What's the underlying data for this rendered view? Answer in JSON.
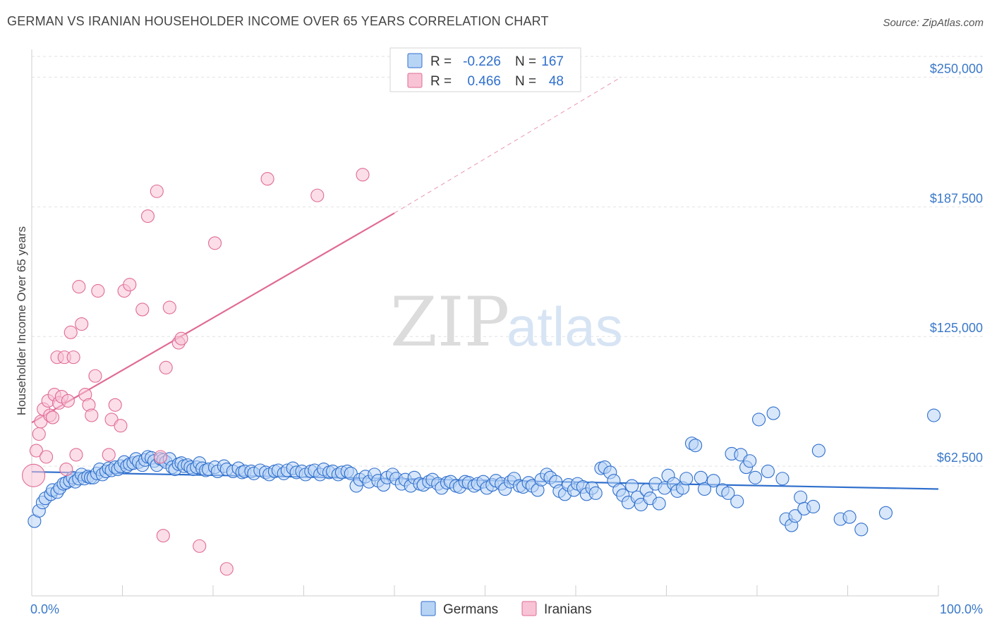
{
  "title": "GERMAN VS IRANIAN HOUSEHOLDER INCOME OVER 65 YEARS CORRELATION CHART",
  "source": "Source: ZipAtlas.com",
  "watermark": {
    "zip": "ZIP",
    "atlas": "atlas"
  },
  "colors": {
    "german": "#2f6fcc",
    "german_fill": "#b8d4f5",
    "iranian": "#e06b95",
    "iranian_fill": "#f8c3d5",
    "tick": "#3a78c9"
  },
  "legend": {
    "german": {
      "r_label": "R =",
      "r": "-0.226",
      "n_label": "N =",
      "n": "167"
    },
    "iranian": {
      "r_label": "R =",
      "r": "0.466",
      "n_label": "N =",
      "n": "48"
    }
  },
  "chart_data": {
    "type": "scatter",
    "title": "GERMAN VS IRANIAN HOUSEHOLDER INCOME OVER 65 YEARS CORRELATION CHART",
    "xlabel": "",
    "ylabel": "Householder Income Over 65 years",
    "xlim": [
      0,
      100
    ],
    "ylim": [
      0,
      260000
    ],
    "x_tick_labels": [
      "0.0%",
      "100.0%"
    ],
    "y_ticks": [
      62500,
      125000,
      187500,
      250000
    ],
    "y_tick_labels": [
      "$62,500",
      "$125,000",
      "$187,500",
      "$250,000"
    ],
    "grid": true,
    "legend_position": "top-center",
    "series": [
      {
        "name": "Germans",
        "color": "#2f6fcc",
        "trend": {
          "x": [
            0,
            100
          ],
          "y": [
            59800,
            51500
          ],
          "style": "solid"
        },
        "points": [
          [
            0.3,
            36000
          ],
          [
            0.8,
            41000
          ],
          [
            1.2,
            45000
          ],
          [
            1.5,
            47000
          ],
          [
            2.1,
            49000
          ],
          [
            2.3,
            51000
          ],
          [
            2.8,
            50000
          ],
          [
            3.1,
            52000
          ],
          [
            3.5,
            54000
          ],
          [
            3.8,
            54500
          ],
          [
            4.2,
            55500
          ],
          [
            4.5,
            57000
          ],
          [
            4.8,
            55000
          ],
          [
            5.2,
            56500
          ],
          [
            5.5,
            58500
          ],
          [
            5.8,
            56500
          ],
          [
            6.2,
            57500
          ],
          [
            6.5,
            57000
          ],
          [
            6.8,
            57000
          ],
          [
            7.2,
            59000
          ],
          [
            7.5,
            61000
          ],
          [
            7.8,
            58500
          ],
          [
            8.2,
            60000
          ],
          [
            8.5,
            61500
          ],
          [
            8.8,
            60500
          ],
          [
            9.2,
            62000
          ],
          [
            9.5,
            61000
          ],
          [
            9.8,
            62500
          ],
          [
            10.2,
            64500
          ],
          [
            10.5,
            62500
          ],
          [
            10.8,
            63500
          ],
          [
            11.2,
            64000
          ],
          [
            11.5,
            66000
          ],
          [
            11.8,
            64500
          ],
          [
            12.2,
            63000
          ],
          [
            12.5,
            65500
          ],
          [
            12.8,
            67000
          ],
          [
            13.2,
            66500
          ],
          [
            13.5,
            65000
          ],
          [
            13.8,
            63000
          ],
          [
            14.2,
            66000
          ],
          [
            14.5,
            65500
          ],
          [
            14.8,
            64500
          ],
          [
            15.2,
            66000
          ],
          [
            15.5,
            62000
          ],
          [
            15.8,
            61000
          ],
          [
            16.2,
            63500
          ],
          [
            16.5,
            64000
          ],
          [
            16.8,
            62500
          ],
          [
            17.2,
            63000
          ],
          [
            17.5,
            62000
          ],
          [
            17.8,
            61000
          ],
          [
            18.2,
            62000
          ],
          [
            18.5,
            64000
          ],
          [
            18.8,
            61500
          ],
          [
            19.2,
            60500
          ],
          [
            19.5,
            61000
          ],
          [
            20.2,
            62000
          ],
          [
            20.5,
            60000
          ],
          [
            21.2,
            62500
          ],
          [
            21.5,
            61000
          ],
          [
            22.2,
            60000
          ],
          [
            22.8,
            61500
          ],
          [
            23.2,
            59500
          ],
          [
            23.5,
            60000
          ],
          [
            24.2,
            60000
          ],
          [
            24.5,
            59000
          ],
          [
            25.2,
            60500
          ],
          [
            25.8,
            59500
          ],
          [
            26.2,
            58500
          ],
          [
            26.8,
            60000
          ],
          [
            27.2,
            60500
          ],
          [
            27.8,
            59000
          ],
          [
            28.2,
            60500
          ],
          [
            28.8,
            61500
          ],
          [
            29.2,
            59500
          ],
          [
            29.8,
            60000
          ],
          [
            30.2,
            58500
          ],
          [
            30.8,
            60000
          ],
          [
            31.2,
            60500
          ],
          [
            31.8,
            58500
          ],
          [
            32.2,
            61000
          ],
          [
            32.8,
            59500
          ],
          [
            33.2,
            60000
          ],
          [
            33.8,
            58500
          ],
          [
            34.2,
            59500
          ],
          [
            34.8,
            60000
          ],
          [
            35.2,
            59000
          ],
          [
            35.8,
            53000
          ],
          [
            36.2,
            56000
          ],
          [
            36.8,
            57500
          ],
          [
            37.2,
            55000
          ],
          [
            37.8,
            58500
          ],
          [
            38.2,
            55500
          ],
          [
            38.8,
            53500
          ],
          [
            39.2,
            57000
          ],
          [
            39.8,
            58500
          ],
          [
            40.2,
            56500
          ],
          [
            40.8,
            54000
          ],
          [
            41.2,
            56000
          ],
          [
            41.8,
            53000
          ],
          [
            42.2,
            57000
          ],
          [
            42.8,
            54000
          ],
          [
            43.2,
            53500
          ],
          [
            43.8,
            55000
          ],
          [
            44.2,
            56000
          ],
          [
            44.8,
            54000
          ],
          [
            45.2,
            52000
          ],
          [
            45.8,
            54500
          ],
          [
            46.2,
            55000
          ],
          [
            46.8,
            53000
          ],
          [
            47.2,
            52500
          ],
          [
            47.8,
            55000
          ],
          [
            48.2,
            54500
          ],
          [
            48.8,
            53000
          ],
          [
            49.2,
            54000
          ],
          [
            49.8,
            55000
          ],
          [
            50.2,
            52000
          ],
          [
            50.8,
            53500
          ],
          [
            51.2,
            55500
          ],
          [
            51.8,
            54000
          ],
          [
            52.2,
            51500
          ],
          [
            52.8,
            55000
          ],
          [
            53.2,
            56500
          ],
          [
            53.8,
            53000
          ],
          [
            54.2,
            52500
          ],
          [
            54.8,
            54500
          ],
          [
            55.2,
            53000
          ],
          [
            55.8,
            51000
          ],
          [
            56.2,
            56000
          ],
          [
            56.8,
            58500
          ],
          [
            57.2,
            57000
          ],
          [
            57.8,
            55000
          ],
          [
            58.2,
            50500
          ],
          [
            58.8,
            49000
          ],
          [
            59.2,
            53500
          ],
          [
            59.8,
            51000
          ],
          [
            60.2,
            54000
          ],
          [
            60.8,
            52500
          ],
          [
            61.2,
            49000
          ],
          [
            61.8,
            52000
          ],
          [
            62.2,
            49500
          ],
          [
            62.8,
            61500
          ],
          [
            63.2,
            62000
          ],
          [
            63.8,
            59500
          ],
          [
            64.2,
            55500
          ],
          [
            64.8,
            51000
          ],
          [
            65.2,
            48500
          ],
          [
            65.8,
            45000
          ],
          [
            66.2,
            53000
          ],
          [
            66.8,
            47500
          ],
          [
            67.2,
            44000
          ],
          [
            67.8,
            51000
          ],
          [
            68.2,
            47000
          ],
          [
            68.8,
            54000
          ],
          [
            69.2,
            44500
          ],
          [
            69.8,
            52000
          ],
          [
            70.2,
            58000
          ],
          [
            70.8,
            54000
          ],
          [
            71.2,
            50500
          ],
          [
            71.8,
            52000
          ],
          [
            72.2,
            56500
          ],
          [
            72.8,
            73500
          ],
          [
            73.2,
            72500
          ],
          [
            73.8,
            57000
          ],
          [
            74.2,
            51500
          ],
          [
            75.2,
            55500
          ],
          [
            76.2,
            51000
          ],
          [
            76.8,
            49500
          ],
          [
            77.2,
            68500
          ],
          [
            77.8,
            45500
          ],
          [
            78.2,
            68000
          ],
          [
            78.8,
            62000
          ],
          [
            79.2,
            65000
          ],
          [
            79.8,
            57000
          ],
          [
            80.2,
            85000
          ],
          [
            81.2,
            60000
          ],
          [
            81.8,
            88000
          ],
          [
            82.8,
            56500
          ],
          [
            83.2,
            37000
          ],
          [
            83.8,
            34000
          ],
          [
            84.2,
            38500
          ],
          [
            84.8,
            47500
          ],
          [
            85.2,
            42000
          ],
          [
            86.2,
            43000
          ],
          [
            86.8,
            70000
          ],
          [
            89.2,
            37000
          ],
          [
            90.2,
            38000
          ],
          [
            91.5,
            32000
          ],
          [
            94.2,
            40000
          ],
          [
            99.5,
            87000
          ]
        ]
      },
      {
        "name": "Iranians",
        "color": "#e06b95",
        "trend": {
          "x": [
            0,
            40
          ],
          "y": [
            83500,
            184500
          ],
          "style": "solid",
          "extension": {
            "x": [
              40,
              65
            ],
            "y": [
              184500,
              250000
            ],
            "style": "dashed"
          }
        },
        "points": [
          [
            0.2,
            58000
          ],
          [
            0.5,
            70000
          ],
          [
            0.8,
            78000
          ],
          [
            1.0,
            84000
          ],
          [
            1.3,
            90000
          ],
          [
            1.6,
            67000
          ],
          [
            1.8,
            94000
          ],
          [
            2.0,
            87000
          ],
          [
            2.3,
            86000
          ],
          [
            2.5,
            97000
          ],
          [
            2.8,
            115000
          ],
          [
            3.0,
            93000
          ],
          [
            3.3,
            96000
          ],
          [
            3.6,
            115000
          ],
          [
            3.8,
            61000
          ],
          [
            4.0,
            94000
          ],
          [
            4.3,
            127000
          ],
          [
            4.6,
            115000
          ],
          [
            4.9,
            68000
          ],
          [
            5.2,
            149000
          ],
          [
            5.5,
            131000
          ],
          [
            5.9,
            97000
          ],
          [
            6.3,
            92000
          ],
          [
            6.6,
            87000
          ],
          [
            7.0,
            106000
          ],
          [
            7.3,
            147000
          ],
          [
            8.5,
            68000
          ],
          [
            8.8,
            85000
          ],
          [
            9.2,
            92000
          ],
          [
            9.8,
            82000
          ],
          [
            10.2,
            147000
          ],
          [
            10.8,
            150000
          ],
          [
            12.2,
            138000
          ],
          [
            12.8,
            183000
          ],
          [
            13.8,
            195000
          ],
          [
            14.2,
            67000
          ],
          [
            14.5,
            29000
          ],
          [
            14.8,
            110000
          ],
          [
            15.2,
            139000
          ],
          [
            16.2,
            122000
          ],
          [
            16.5,
            124000
          ],
          [
            18.5,
            24000
          ],
          [
            20.2,
            170000
          ],
          [
            21.5,
            13000
          ],
          [
            26.0,
            201000
          ],
          [
            31.5,
            193000
          ],
          [
            36.5,
            203000
          ]
        ]
      }
    ]
  },
  "bottom_legend": {
    "german": "Germans",
    "iranian": "Iranians"
  }
}
